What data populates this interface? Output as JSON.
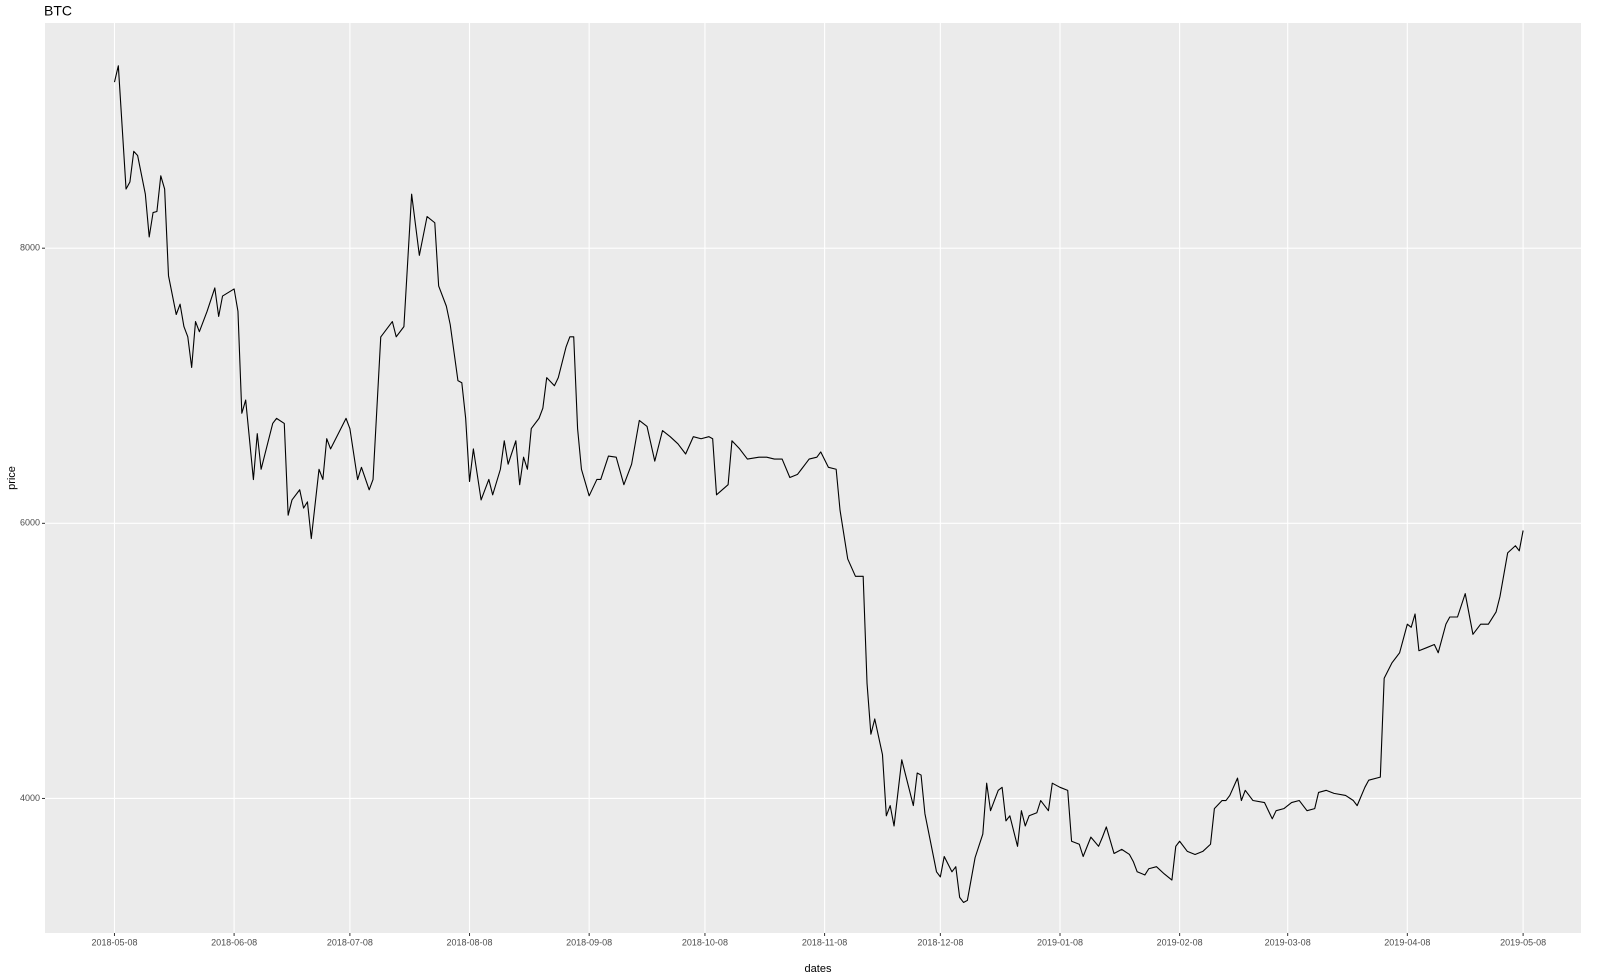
{
  "chart_data": {
    "type": "line",
    "title": "BTC",
    "x_label": "dates",
    "y_label": "price",
    "x": [
      "2018-05-08",
      "2018-05-09",
      "2018-05-11",
      "2018-05-12",
      "2018-05-13",
      "2018-05-14",
      "2018-05-16",
      "2018-05-17",
      "2018-05-18",
      "2018-05-19",
      "2018-05-20",
      "2018-05-21",
      "2018-05-22",
      "2018-05-24",
      "2018-05-25",
      "2018-05-26",
      "2018-05-27",
      "2018-05-28",
      "2018-05-29",
      "2018-05-30",
      "2018-06-01",
      "2018-06-03",
      "2018-06-04",
      "2018-06-05",
      "2018-06-08",
      "2018-06-09",
      "2018-06-10",
      "2018-06-11",
      "2018-06-13",
      "2018-06-14",
      "2018-06-15",
      "2018-06-16",
      "2018-06-18",
      "2018-06-19",
      "2018-06-21",
      "2018-06-22",
      "2018-06-23",
      "2018-06-25",
      "2018-06-26",
      "2018-06-27",
      "2018-06-28",
      "2018-06-30",
      "2018-07-01",
      "2018-07-02",
      "2018-07-03",
      "2018-07-05",
      "2018-07-07",
      "2018-07-08",
      "2018-07-10",
      "2018-07-11",
      "2018-07-13",
      "2018-07-14",
      "2018-07-16",
      "2018-07-19",
      "2018-07-20",
      "2018-07-22",
      "2018-07-24",
      "2018-07-26",
      "2018-07-28",
      "2018-07-30",
      "2018-07-31",
      "2018-08-02",
      "2018-08-03",
      "2018-08-05",
      "2018-08-06",
      "2018-08-07",
      "2018-08-08",
      "2018-08-09",
      "2018-08-11",
      "2018-08-13",
      "2018-08-14",
      "2018-08-16",
      "2018-08-17",
      "2018-08-18",
      "2018-08-20",
      "2018-08-21",
      "2018-08-22",
      "2018-08-23",
      "2018-08-24",
      "2018-08-26",
      "2018-08-27",
      "2018-08-28",
      "2018-08-30",
      "2018-08-31",
      "2018-09-02",
      "2018-09-03",
      "2018-09-04",
      "2018-09-05",
      "2018-09-06",
      "2018-09-08",
      "2018-09-10",
      "2018-09-11",
      "2018-09-13",
      "2018-09-15",
      "2018-09-17",
      "2018-09-19",
      "2018-09-21",
      "2018-09-23",
      "2018-09-25",
      "2018-09-27",
      "2018-09-29",
      "2018-10-01",
      "2018-10-03",
      "2018-10-05",
      "2018-10-07",
      "2018-10-09",
      "2018-10-10",
      "2018-10-11",
      "2018-10-14",
      "2018-10-15",
      "2018-10-17",
      "2018-10-19",
      "2018-10-22",
      "2018-10-24",
      "2018-10-26",
      "2018-10-28",
      "2018-10-30",
      "2018-11-01",
      "2018-11-02",
      "2018-11-03",
      "2018-11-04",
      "2018-11-06",
      "2018-11-07",
      "2018-11-09",
      "2018-11-11",
      "2018-11-12",
      "2018-11-14",
      "2018-11-16",
      "2018-11-18",
      "2018-11-19",
      "2018-11-20",
      "2018-11-21",
      "2018-11-23",
      "2018-11-24",
      "2018-11-25",
      "2018-11-26",
      "2018-11-28",
      "2018-11-29",
      "2018-12-01",
      "2018-12-02",
      "2018-12-03",
      "2018-12-04",
      "2018-12-07",
      "2018-12-08",
      "2018-12-09",
      "2018-12-11",
      "2018-12-12",
      "2018-12-13",
      "2018-12-14",
      "2018-12-15",
      "2018-12-17",
      "2018-12-19",
      "2018-12-20",
      "2018-12-21",
      "2018-12-23",
      "2018-12-24",
      "2018-12-25",
      "2018-12-26",
      "2018-12-28",
      "2018-12-29",
      "2018-12-30",
      "2018-12-31",
      "2019-01-02",
      "2019-01-03",
      "2019-01-05",
      "2019-01-06",
      "2019-01-08",
      "2019-01-10",
      "2019-01-11",
      "2019-01-13",
      "2019-01-14",
      "2019-01-16",
      "2019-01-18",
      "2019-01-19",
      "2019-01-20",
      "2019-01-22",
      "2019-01-24",
      "2019-01-26",
      "2019-01-27",
      "2019-01-28",
      "2019-01-30",
      "2019-01-31",
      "2019-02-02",
      "2019-02-04",
      "2019-02-06",
      "2019-02-07",
      "2019-02-08",
      "2019-02-10",
      "2019-02-12",
      "2019-02-14",
      "2019-02-16",
      "2019-02-17",
      "2019-02-19",
      "2019-02-20",
      "2019-02-21",
      "2019-02-23",
      "2019-02-24",
      "2019-02-25",
      "2019-02-27",
      "2019-03-02",
      "2019-03-04",
      "2019-03-05",
      "2019-03-07",
      "2019-03-09",
      "2019-03-11",
      "2019-03-13",
      "2019-03-15",
      "2019-03-16",
      "2019-03-18",
      "2019-03-20",
      "2019-03-23",
      "2019-03-25",
      "2019-03-26",
      "2019-03-28",
      "2019-03-29",
      "2019-04-01",
      "2019-04-02",
      "2019-04-04",
      "2019-04-06",
      "2019-04-08",
      "2019-04-09",
      "2019-04-10",
      "2019-04-11",
      "2019-04-13",
      "2019-04-15",
      "2019-04-16",
      "2019-04-18",
      "2019-04-19",
      "2019-04-21",
      "2019-04-23",
      "2019-04-25",
      "2019-04-27",
      "2019-04-29",
      "2019-05-01",
      "2019-05-02",
      "2019-05-04",
      "2019-05-06",
      "2019-05-07",
      "2019-05-08"
    ],
    "series": [
      {
        "name": "BTC",
        "color": "#000000",
        "values": [
          9207,
          9326,
          8430,
          8481,
          8704,
          8674,
          8393,
          8082,
          8259,
          8267,
          8526,
          8430,
          7800,
          7518,
          7593,
          7430,
          7356,
          7133,
          7467,
          7393,
          7541,
          7711,
          7504,
          7652,
          7704,
          7541,
          6800,
          6896,
          6318,
          6652,
          6393,
          6504,
          6726,
          6763,
          6726,
          6059,
          6170,
          6244,
          6111,
          6156,
          5889,
          6393,
          6319,
          6615,
          6541,
          6652,
          6763,
          6689,
          6318,
          6407,
          6244,
          6319,
          7355,
          7467,
          7356,
          7430,
          8393,
          7948,
          8230,
          8185,
          7726,
          7578,
          7444,
          7037,
          7022,
          6763,
          6304,
          6541,
          6170,
          6319,
          6207,
          6393,
          6600,
          6430,
          6600,
          6281,
          6481,
          6393,
          6689,
          6763,
          6837,
          7059,
          7000,
          7059,
          7281,
          7356,
          7356,
          6689,
          6393,
          6200,
          6319,
          6319,
          6489,
          6481,
          6281,
          6430,
          6748,
          6704,
          6452,
          6674,
          6630,
          6578,
          6504,
          6630,
          6615,
          6630,
          6615,
          6207,
          6281,
          6600,
          6541,
          6467,
          6481,
          6481,
          6467,
          6467,
          6333,
          6356,
          6393,
          6430,
          6467,
          6481,
          6519,
          6407,
          6393,
          6096,
          5741,
          5615,
          5615,
          4837,
          4467,
          4578,
          4319,
          3874,
          3948,
          3800,
          4281,
          4170,
          3948,
          4185,
          4170,
          3889,
          3467,
          3430,
          3578,
          3467,
          3504,
          3281,
          3244,
          3259,
          3570,
          3741,
          4111,
          3911,
          4059,
          4081,
          3837,
          3874,
          3652,
          3911,
          3800,
          3874,
          3896,
          3985,
          3911,
          4111,
          4081,
          4059,
          3689,
          3667,
          3578,
          3719,
          3652,
          3719,
          3793,
          3600,
          3630,
          3593,
          3541,
          3467,
          3444,
          3489,
          3504,
          3452,
          3407,
          3652,
          3689,
          3615,
          3593,
          3615,
          3667,
          3926,
          3985,
          3985,
          4022,
          4148,
          3985,
          4059,
          3985,
          3970,
          3852,
          3911,
          3926,
          3970,
          3985,
          3911,
          3926,
          4044,
          4059,
          4037,
          4022,
          3985,
          3948,
          4081,
          4133,
          4155,
          4874,
          4985,
          5059,
          5267,
          5244,
          5341,
          5074,
          5096,
          5119,
          5059,
          5267,
          5319,
          5319,
          5489,
          5193,
          5267,
          5267,
          5356,
          5467,
          5785,
          5837,
          5800,
          5948
        ]
      }
    ],
    "xlim": [
      "2018-04-20",
      "2019-05-23"
    ],
    "xticks": [
      "2018-05-08",
      "2018-06-08",
      "2018-07-08",
      "2018-08-08",
      "2018-09-08",
      "2018-10-08",
      "2018-11-08",
      "2018-12-08",
      "2019-01-08",
      "2019-02-08",
      "2019-03-08",
      "2019-04-08",
      "2019-05-08"
    ],
    "ylim": [
      3022,
      9637
    ],
    "yticks": [
      4000,
      6000,
      8000
    ],
    "grid": true
  }
}
